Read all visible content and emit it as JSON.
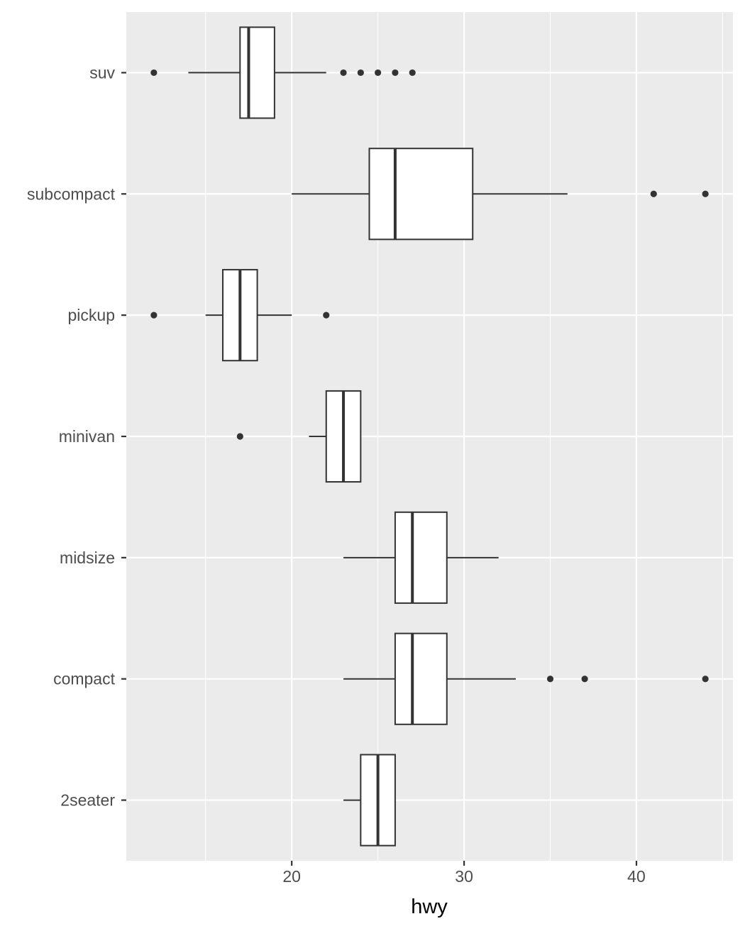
{
  "chart_data": {
    "type": "boxplot",
    "orientation": "horizontal",
    "title": "",
    "xlabel": "hwy",
    "ylabel": "",
    "xlim": [
      10.4,
      45.6
    ],
    "x_ticks": [
      20,
      30,
      40
    ],
    "x_tick_labels": [
      "20",
      "30",
      "40"
    ],
    "grid": true,
    "theme": "ggplot2 grey",
    "colors": {
      "panel": "#ebebeb",
      "grid": "#ffffff",
      "box_fill": "#ffffff",
      "box_stroke": "#333333",
      "point": "#333333",
      "tick_label": "#4d4d4d"
    },
    "categories": [
      "suv",
      "subcompact",
      "pickup",
      "minivan",
      "midsize",
      "compact",
      "2seater"
    ],
    "boxes": [
      {
        "category": "suv",
        "lower_whisker": 14,
        "q1": 17,
        "median": 17.5,
        "q3": 19,
        "upper_whisker": 22,
        "outliers": [
          12,
          23,
          24,
          25,
          26,
          27
        ]
      },
      {
        "category": "subcompact",
        "lower_whisker": 20,
        "q1": 24.5,
        "median": 26,
        "q3": 30.5,
        "upper_whisker": 36,
        "outliers": [
          41,
          44
        ]
      },
      {
        "category": "pickup",
        "lower_whisker": 15,
        "q1": 16,
        "median": 17,
        "q3": 18,
        "upper_whisker": 20,
        "outliers": [
          12,
          22
        ]
      },
      {
        "category": "minivan",
        "lower_whisker": 21,
        "q1": 22,
        "median": 23,
        "q3": 24,
        "upper_whisker": 24,
        "outliers": [
          17
        ]
      },
      {
        "category": "midsize",
        "lower_whisker": 23,
        "q1": 26,
        "median": 27,
        "q3": 29,
        "upper_whisker": 32,
        "outliers": []
      },
      {
        "category": "compact",
        "lower_whisker": 23,
        "q1": 26,
        "median": 27,
        "q3": 29,
        "upper_whisker": 33,
        "outliers": [
          35,
          37,
          44
        ]
      },
      {
        "category": "2seater",
        "lower_whisker": 23,
        "q1": 24,
        "median": 25,
        "q3": 26,
        "upper_whisker": 26,
        "outliers": []
      }
    ]
  }
}
